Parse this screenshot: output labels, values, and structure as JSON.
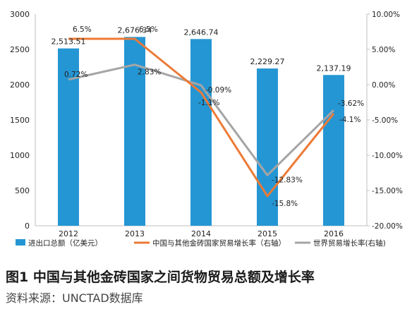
{
  "figure": {
    "caption": "图1  中国与其他金砖国家之间货物贸易总额及增长率",
    "source": "资料来源：UNCTAD数据库"
  },
  "chart_data": {
    "type": "bar",
    "categories": [
      "2012",
      "2013",
      "2014",
      "2015",
      "2016"
    ],
    "left_axis": {
      "min": 0,
      "max": 3000,
      "step": 500,
      "ticks": [
        "0",
        "500",
        "1000",
        "1500",
        "2000",
        "2500",
        "3000"
      ]
    },
    "right_axis": {
      "min": -20,
      "max": 10,
      "step": 5,
      "ticks": [
        "-20.00%",
        "-15.00%",
        "-10.00%",
        "-5.00%",
        "0.00%",
        "5.00%",
        "10.00%"
      ]
    },
    "grid": false,
    "legend_position": "bottom",
    "series": [
      {
        "name": "进出口总额（亿美元）",
        "type": "bar",
        "axis": "left",
        "color": "#2596d4",
        "values": [
          2513.51,
          2676.34,
          2646.74,
          2229.27,
          2137.19
        ],
        "labels": [
          "2,513.51",
          "2,676.34",
          "2,646.74",
          "2,229.27",
          "2,137.19"
        ]
      },
      {
        "name": "中国与其他金砖国家贸易增长率（右轴）",
        "type": "line",
        "axis": "right",
        "color": "#ec7a36",
        "values": [
          6.5,
          6.5,
          -1.1,
          -15.8,
          -4.1
        ],
        "labels": [
          "6.5%",
          "6.5%",
          "-1.1%",
          "-15.8%",
          "-4.1%"
        ]
      },
      {
        "name": "世界贸易增长率(右轴)",
        "type": "line",
        "axis": "right",
        "color": "#a5a5a5",
        "values": [
          0.72,
          2.83,
          -0.09,
          -12.83,
          -3.62
        ],
        "labels": [
          "0.72%",
          "2.83%",
          "-0.09%",
          "-12.83%",
          "-3.62%"
        ]
      }
    ]
  }
}
